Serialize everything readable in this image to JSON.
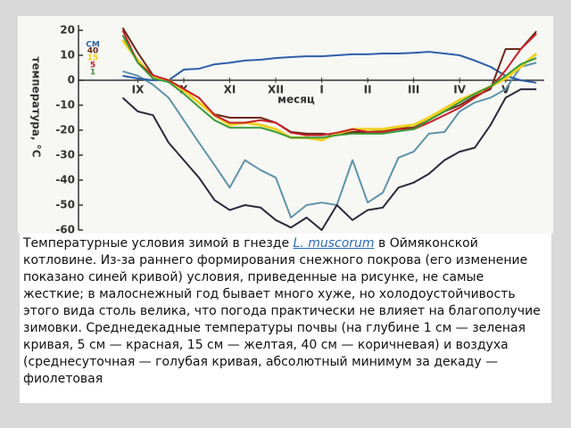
{
  "chart_data": {
    "type": "line",
    "ylabel": "температура, °С",
    "xlabel": "месяц",
    "legend_title": "СМ",
    "x": [
      -0.33,
      0,
      0.33,
      0.67,
      1,
      1.33,
      1.67,
      2,
      2.33,
      2.67,
      3,
      3.33,
      3.67,
      4,
      4.33,
      4.67,
      5,
      5.33,
      5.67,
      6,
      6.33,
      6.67,
      7,
      7.33,
      7.67,
      8,
      8.33,
      8.67
    ],
    "xlim": [
      -1.29,
      8.84
    ],
    "xticks": [
      {
        "value": 0,
        "label": "IX"
      },
      {
        "value": 1,
        "label": "X"
      },
      {
        "value": 2,
        "label": "XI"
      },
      {
        "value": 3,
        "label": "XII"
      },
      {
        "value": 4,
        "label": "I"
      },
      {
        "value": 5,
        "label": "II"
      },
      {
        "value": 6,
        "label": "III"
      },
      {
        "value": 7,
        "label": "IV"
      },
      {
        "value": 8,
        "label": "V"
      }
    ],
    "ylim": [
      -60,
      20
    ],
    "yticks": [
      20,
      10,
      0,
      -10,
      -20,
      -30,
      -40,
      -50,
      -60
    ],
    "series": [
      {
        "color": "#5f93a8",
        "values": [
          3.6,
          1.8,
          -1.8,
          -7,
          -16,
          -25,
          -34,
          -43,
          -32,
          -36,
          -39,
          -55,
          -50,
          -49,
          -50,
          -32,
          -49,
          -45,
          -31,
          -28.6,
          -21.4,
          -20.7,
          -12.5,
          -8.9,
          -7,
          -3.6,
          5.4,
          7
        ]
      },
      {
        "color": "#2a2a3a",
        "values": [
          -7,
          -12.5,
          -14,
          -25,
          -32,
          -39,
          -48,
          -52,
          -50,
          -51,
          -56,
          -59,
          -55,
          -60,
          -50,
          -56,
          -52,
          -51,
          -43,
          -41,
          -37.5,
          -32,
          -28.6,
          -27,
          -18,
          -7,
          -3.6,
          -3.6
        ]
      },
      {
        "color": "#2d5fa8",
        "values": [
          1.8,
          0.7,
          0,
          0,
          4.3,
          4.6,
          6.4,
          7,
          7.9,
          8.2,
          8.9,
          9.3,
          9.6,
          9.6,
          10,
          10.4,
          10.4,
          10.7,
          10.7,
          11,
          11.4,
          10.7,
          10,
          7.9,
          5.4,
          1.8,
          0,
          -1
        ]
      },
      {
        "name": "40",
        "color": "#6b2a1a",
        "values": [
          21,
          11,
          2,
          -0.7,
          -3.5,
          -9,
          -13.6,
          -15,
          -15,
          -15,
          -17,
          -20.7,
          -21.4,
          -21.4,
          -22,
          -20.7,
          -20.7,
          -20.4,
          -19,
          -19,
          -16,
          -12.5,
          -10,
          -6.4,
          -3.6,
          12.5,
          12.5,
          19.6
        ]
      },
      {
        "name": "15",
        "color": "#f0d020",
        "values": [
          16,
          8,
          1.4,
          0,
          -4,
          -9,
          -14,
          -17.9,
          -17,
          -17.9,
          -19.6,
          -23,
          -23,
          -24,
          -21.4,
          -19.6,
          -19.6,
          -19.6,
          -18.6,
          -17.9,
          -15,
          -11.4,
          -7.9,
          -5.4,
          -2.5,
          0.7,
          5.4,
          10.7
        ]
      },
      {
        "name": "5",
        "color": "#c8202a",
        "values": [
          20,
          7,
          2,
          0,
          -3.5,
          -7,
          -14,
          -17,
          -17,
          -16,
          -17,
          -21,
          -22,
          -22,
          -21,
          -19.6,
          -20.7,
          -20.7,
          -19.6,
          -19.6,
          -17,
          -14,
          -11,
          -7,
          -3,
          4,
          12.5,
          18.6
        ]
      },
      {
        "name": "1",
        "color": "#3a9a3a",
        "values": [
          18,
          7,
          0.7,
          -0.7,
          -5.4,
          -10.7,
          -16,
          -19,
          -19,
          -19,
          -20.7,
          -23,
          -23,
          -23,
          -22,
          -21.4,
          -21.4,
          -21.4,
          -20.4,
          -19.6,
          -16,
          -12.5,
          -8.9,
          -5.4,
          -2.5,
          1.8,
          6.4,
          8.9
        ]
      }
    ]
  },
  "caption": {
    "before": "Температурные условия зимой в гнезде ",
    "species": "L. muscorum",
    "after": " в Оймяконской котловине. Из-за раннего формирования снежного покрова (его изменение показано синей кривой) условия, приведенные на рисунке, не самые жесткие; в малоснежный год бывает много хуже, но холодоустойчивость этого вида столь велика, что погода практически не влияет на благополучие зимовки. Среднедекадные температуры почвы (на глубине 1 см — зеленая кривая, 5 см — красная, 15 см — желтая, 40 см — коричневая) и воздуха (среднесуточная — голубая кривая, абсолютный минимум за декаду — фиолетовая"
  }
}
